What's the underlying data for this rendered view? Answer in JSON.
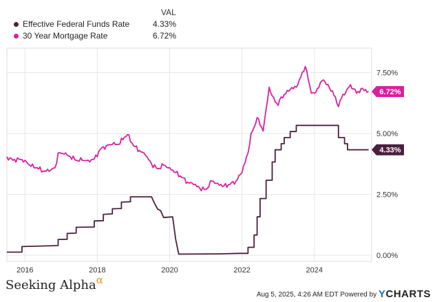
{
  "legend": {
    "header": "VAL",
    "items": [
      {
        "name": "Effective Federal Funds Rate",
        "value": "4.33%",
        "color": "#4a1f3d"
      },
      {
        "name": "30 Year Mortgage Rate",
        "value": "6.72%",
        "color": "#d91f9f"
      }
    ]
  },
  "footer": {
    "brand": "Seeking Alpha",
    "brand_symbol": "α",
    "timestamp": "Aug 5, 2025, 4:26 AM EDT  Powered by",
    "ycharts_y": "Y",
    "ycharts_rest": "CHARTS"
  },
  "chart_data": {
    "type": "line",
    "x_ticks": [
      "2016",
      "2018",
      "2020",
      "2022",
      "2024"
    ],
    "y_ticks": [
      "0.00%",
      "2.50%",
      "5.00%",
      "7.50%"
    ],
    "xlim": [
      "2015-07",
      "2025-08"
    ],
    "ylim": [
      -0.25,
      8.5
    ],
    "end_labels": [
      "6.72%",
      "4.33%"
    ],
    "series": [
      {
        "name": "30 Year Mortgage Rate",
        "color": "#d91f9f",
        "points": [
          [
            "2015-07",
            4.05
          ],
          [
            "2015-09",
            3.9
          ],
          [
            "2015-11",
            3.95
          ],
          [
            "2016-01",
            3.9
          ],
          [
            "2016-03",
            3.65
          ],
          [
            "2016-05",
            3.6
          ],
          [
            "2016-07",
            3.45
          ],
          [
            "2016-09",
            3.45
          ],
          [
            "2016-11",
            3.6
          ],
          [
            "2016-12",
            4.2
          ],
          [
            "2017-02",
            4.15
          ],
          [
            "2017-04",
            4.05
          ],
          [
            "2017-06",
            3.9
          ],
          [
            "2017-08",
            3.9
          ],
          [
            "2017-10",
            3.9
          ],
          [
            "2017-12",
            3.95
          ],
          [
            "2018-02",
            4.35
          ],
          [
            "2018-04",
            4.5
          ],
          [
            "2018-06",
            4.55
          ],
          [
            "2018-08",
            4.55
          ],
          [
            "2018-10",
            4.85
          ],
          [
            "2018-11",
            4.95
          ],
          [
            "2019-01",
            4.5
          ],
          [
            "2019-03",
            4.3
          ],
          [
            "2019-05",
            4.1
          ],
          [
            "2019-07",
            3.75
          ],
          [
            "2019-09",
            3.55
          ],
          [
            "2019-11",
            3.7
          ],
          [
            "2020-01",
            3.6
          ],
          [
            "2020-03",
            3.4
          ],
          [
            "2020-05",
            3.2
          ],
          [
            "2020-07",
            3.0
          ],
          [
            "2020-09",
            2.9
          ],
          [
            "2020-11",
            2.75
          ],
          [
            "2021-01",
            2.7
          ],
          [
            "2021-03",
            3.05
          ],
          [
            "2021-05",
            2.95
          ],
          [
            "2021-07",
            2.85
          ],
          [
            "2021-09",
            2.9
          ],
          [
            "2021-11",
            3.05
          ],
          [
            "2022-01",
            3.4
          ],
          [
            "2022-03",
            4.2
          ],
          [
            "2022-04",
            5.0
          ],
          [
            "2022-05",
            5.25
          ],
          [
            "2022-06",
            5.65
          ],
          [
            "2022-08",
            5.1
          ],
          [
            "2022-09",
            6.0
          ],
          [
            "2022-10",
            6.9
          ],
          [
            "2022-11",
            6.55
          ],
          [
            "2022-12",
            6.3
          ],
          [
            "2023-01",
            6.15
          ],
          [
            "2023-02",
            6.5
          ],
          [
            "2023-03",
            6.6
          ],
          [
            "2023-05",
            6.8
          ],
          [
            "2023-07",
            6.9
          ],
          [
            "2023-08",
            7.2
          ],
          [
            "2023-10",
            7.75
          ],
          [
            "2023-11",
            7.2
          ],
          [
            "2023-12",
            6.65
          ],
          [
            "2024-01",
            6.65
          ],
          [
            "2024-02",
            6.85
          ],
          [
            "2024-04",
            7.2
          ],
          [
            "2024-05",
            7.0
          ],
          [
            "2024-07",
            6.75
          ],
          [
            "2024-09",
            6.1
          ],
          [
            "2024-10",
            6.45
          ],
          [
            "2024-12",
            6.85
          ],
          [
            "2025-01",
            7.0
          ],
          [
            "2025-03",
            6.65
          ],
          [
            "2025-05",
            6.85
          ],
          [
            "2025-07",
            6.72
          ]
        ]
      },
      {
        "name": "Effective Federal Funds Rate",
        "color": "#4a1f3d",
        "points": [
          [
            "2015-07",
            0.13
          ],
          [
            "2015-12",
            0.13
          ],
          [
            "2015-12",
            0.36
          ],
          [
            "2016-12",
            0.4
          ],
          [
            "2016-12",
            0.65
          ],
          [
            "2017-03",
            0.66
          ],
          [
            "2017-03",
            0.9
          ],
          [
            "2017-06",
            0.91
          ],
          [
            "2017-06",
            1.15
          ],
          [
            "2017-12",
            1.16
          ],
          [
            "2017-12",
            1.41
          ],
          [
            "2018-03",
            1.42
          ],
          [
            "2018-03",
            1.68
          ],
          [
            "2018-06",
            1.7
          ],
          [
            "2018-06",
            1.91
          ],
          [
            "2018-09",
            1.92
          ],
          [
            "2018-09",
            2.18
          ],
          [
            "2018-12",
            2.2
          ],
          [
            "2018-12",
            2.4
          ],
          [
            "2019-07",
            2.4
          ],
          [
            "2019-08",
            2.13
          ],
          [
            "2019-09",
            1.9
          ],
          [
            "2019-10",
            1.83
          ],
          [
            "2019-11",
            1.55
          ],
          [
            "2020-02",
            1.58
          ],
          [
            "2020-03",
            0.65
          ],
          [
            "2020-04",
            0.05
          ],
          [
            "2021-06",
            0.06
          ],
          [
            "2021-12",
            0.08
          ],
          [
            "2022-03",
            0.08
          ],
          [
            "2022-03",
            0.33
          ],
          [
            "2022-05",
            0.33
          ],
          [
            "2022-05",
            0.83
          ],
          [
            "2022-06",
            0.83
          ],
          [
            "2022-06",
            1.58
          ],
          [
            "2022-07",
            1.58
          ],
          [
            "2022-07",
            2.33
          ],
          [
            "2022-09",
            2.33
          ],
          [
            "2022-09",
            3.08
          ],
          [
            "2022-11",
            3.08
          ],
          [
            "2022-11",
            3.83
          ],
          [
            "2022-12",
            3.83
          ],
          [
            "2022-12",
            4.33
          ],
          [
            "2023-02",
            4.33
          ],
          [
            "2023-02",
            4.58
          ],
          [
            "2023-03",
            4.58
          ],
          [
            "2023-03",
            4.83
          ],
          [
            "2023-05",
            4.83
          ],
          [
            "2023-05",
            5.08
          ],
          [
            "2023-07",
            5.08
          ],
          [
            "2023-07",
            5.33
          ],
          [
            "2024-09",
            5.33
          ],
          [
            "2024-09",
            4.83
          ],
          [
            "2024-11",
            4.83
          ],
          [
            "2024-11",
            4.58
          ],
          [
            "2024-12",
            4.58
          ],
          [
            "2024-12",
            4.33
          ],
          [
            "2025-07",
            4.33
          ]
        ]
      }
    ]
  }
}
